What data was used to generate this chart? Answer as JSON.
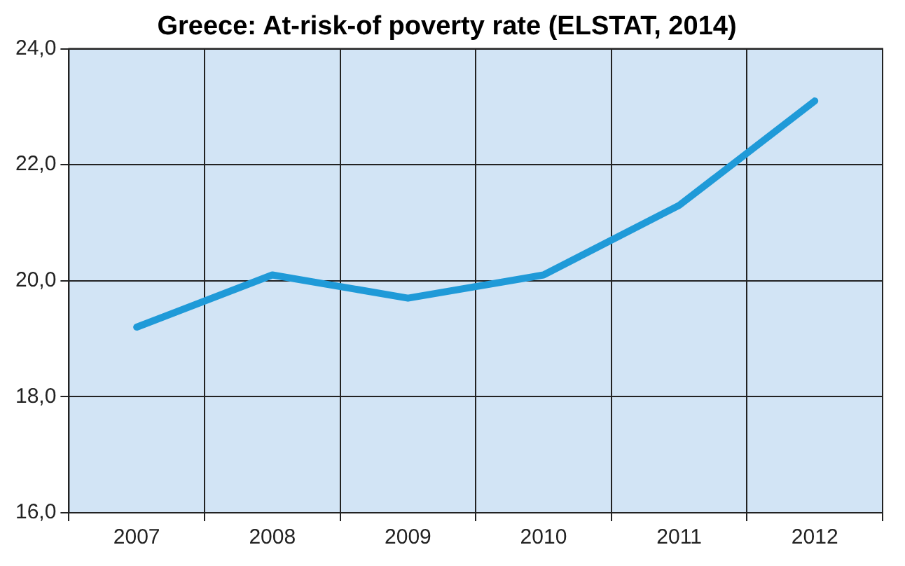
{
  "chart_data": {
    "type": "line",
    "title": "Greece: At-risk-of poverty rate (ELSTAT, 2014)",
    "categories": [
      "2007",
      "2008",
      "2009",
      "2010",
      "2011",
      "2012"
    ],
    "series": [
      {
        "color": "#1f9ad8",
        "values": [
          19.2,
          20.1,
          19.7,
          20.1,
          21.3,
          23.1
        ]
      }
    ],
    "ylim": [
      16,
      24
    ],
    "yticks": [
      {
        "value": 16,
        "label": "16,0"
      },
      {
        "value": 18,
        "label": "18,0"
      },
      {
        "value": 20,
        "label": "20,0"
      },
      {
        "value": 22,
        "label": "22,0"
      },
      {
        "value": 24,
        "label": "24,0"
      }
    ],
    "grid": true,
    "marker": "none",
    "line_style": "solid"
  }
}
